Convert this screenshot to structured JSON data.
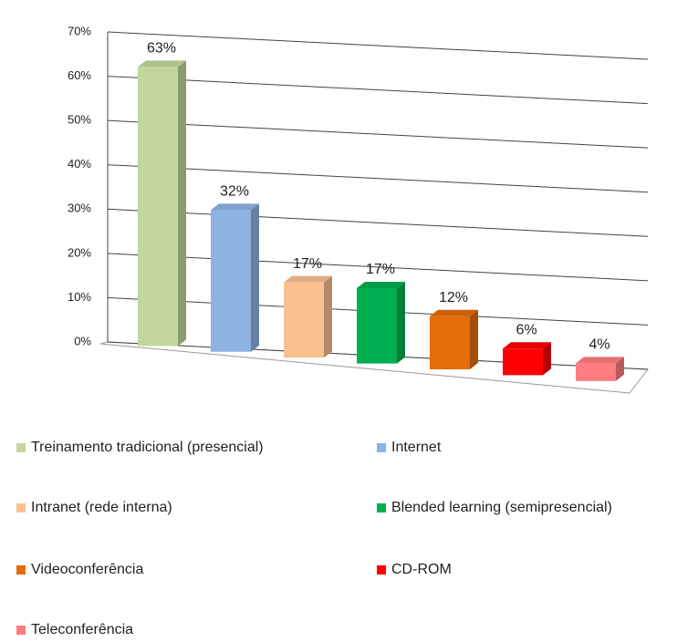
{
  "chart_data": {
    "type": "bar",
    "categories": [
      "Treinamento tradicional (presencial)",
      "Internet",
      "Intranet (rede interna)",
      "Blended learning (semipresencial)",
      "Videoconferência",
      "CD-ROM",
      "Teleconferência"
    ],
    "values": [
      63,
      32,
      17,
      17,
      12,
      6,
      4
    ],
    "value_labels": [
      "63%",
      "32%",
      "17%",
      "17%",
      "12%",
      "6%",
      "4%"
    ],
    "colors": [
      "#c3d69b",
      "#8db3e2",
      "#fac090",
      "#00b050",
      "#e46c0a",
      "#ff0000",
      "#ff7c80"
    ],
    "ylim": [
      0,
      70
    ],
    "yticks": [
      {
        "value": 0,
        "label": "0%"
      },
      {
        "value": 10,
        "label": "10%"
      },
      {
        "value": 20,
        "label": "20%"
      },
      {
        "value": 30,
        "label": "30%"
      },
      {
        "value": 40,
        "label": "40%"
      },
      {
        "value": 50,
        "label": "50%"
      },
      {
        "value": 60,
        "label": "60%"
      },
      {
        "value": 70,
        "label": "70%"
      }
    ],
    "grid": true,
    "legend": "bottom"
  }
}
